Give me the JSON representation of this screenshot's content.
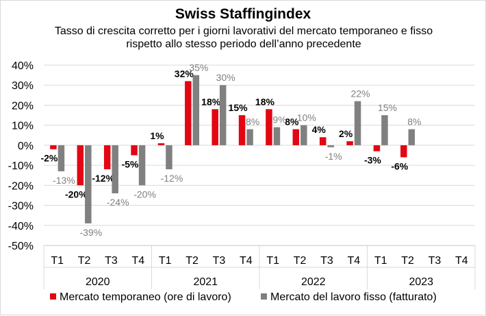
{
  "chart_data": {
    "type": "bar",
    "title": "Swiss Staffingindex",
    "subtitle": "Tasso di crescita corretto per i giorni lavorativi del mercato temporaneo e fisso rispetto allo stesso periodo dell’anno precedente",
    "xlabel": "",
    "ylabel": "",
    "ylim": [
      -50,
      40
    ],
    "yticks": [
      "40%",
      "30%",
      "20%",
      "10%",
      "0%",
      "-10%",
      "-20%",
      "-30%",
      "-40%",
      "-50%"
    ],
    "grid": true,
    "legend_position": "bottom",
    "groups": [
      {
        "label": "2020",
        "categories": [
          "T1",
          "T2",
          "T3",
          "T4"
        ]
      },
      {
        "label": "2021",
        "categories": [
          "T1",
          "T2",
          "T3",
          "T4"
        ]
      },
      {
        "label": "2022",
        "categories": [
          "T1",
          "T2",
          "T3",
          "T4"
        ]
      },
      {
        "label": "2023",
        "categories": [
          "T1",
          "T2",
          "T3",
          "T4"
        ]
      }
    ],
    "series": [
      {
        "name": "Mercato temporaneo (ore di lavoro)",
        "color": "#e30613",
        "values": [
          -2,
          -20,
          -12,
          -5,
          1,
          32,
          18,
          15,
          18,
          8,
          4,
          2,
          -3,
          -6,
          null,
          null
        ]
      },
      {
        "name": "Mercato del lavoro fisso (fatturato)",
        "color": "#808080",
        "values": [
          -13,
          -39,
          -24,
          -20,
          -12,
          35,
          30,
          8,
          9,
          10,
          -1,
          22,
          15,
          8,
          null,
          null
        ]
      }
    ]
  }
}
